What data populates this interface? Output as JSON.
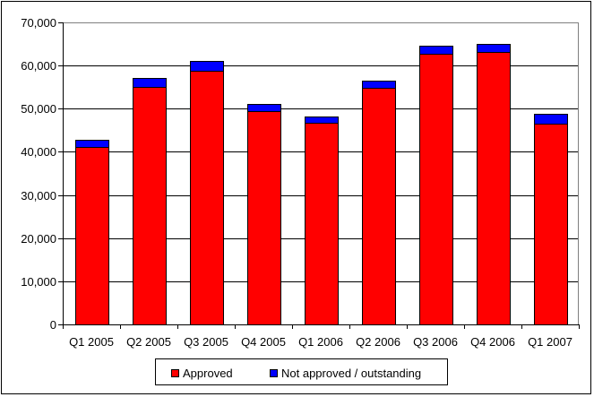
{
  "chart_data": {
    "type": "bar",
    "stacked": true,
    "categories": [
      "Q1 2005",
      "Q2 2005",
      "Q3 2005",
      "Q4 2005",
      "Q1 2006",
      "Q2 2006",
      "Q3 2006",
      "Q4 2006",
      "Q1 2007"
    ],
    "series": [
      {
        "name": "Approved",
        "color": "#ff0000",
        "values": [
          41200,
          55000,
          58800,
          49400,
          46700,
          54900,
          62800,
          63200,
          46600
        ]
      },
      {
        "name": "Not approved / outstanding",
        "color": "#0000ff",
        "values": [
          1600,
          2200,
          2300,
          1700,
          1400,
          1600,
          1900,
          1900,
          2200
        ]
      }
    ],
    "ylim": [
      0,
      70000
    ],
    "yticks": [
      0,
      10000,
      20000,
      30000,
      40000,
      50000,
      60000,
      70000
    ],
    "ytick_labels": [
      "0",
      "10,000",
      "20,000",
      "30,000",
      "40,000",
      "50,000",
      "60,000",
      "70,000"
    ],
    "grid": true,
    "legend_position": "bottom"
  }
}
